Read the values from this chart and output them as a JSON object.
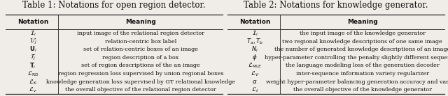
{
  "table1_title": "Table 1: Notations for open region detector.",
  "table1_headers": [
    "Notation",
    "Meaning"
  ],
  "table1_notations": [
    "$\\mathcal{I}_i$",
    "$\\mathcal{U}_j$",
    "$\\mathbf{U}_i$",
    "$\\mathcal{T}_j$",
    "$\\mathbf{T}_i$",
    "$\\mathcal{L}_{\\mathrm{RD}}$",
    "$\\mathcal{L}_{\\mathrm{K}}$",
    "$\\mathcal{L}_{v}$"
  ],
  "table1_meanings": [
    "input image of the relational region detector",
    "relation-centric box label",
    "set of relation-centric boxes of an image",
    "region description of a box",
    "set of region descriptions of the an image",
    "region regression loss supervised by union regional boxes",
    "knowledge generation loss supervised by GT relational knowledge",
    "the overall objective of the relational region detector"
  ],
  "table2_title": "Table 2: Notations for knowledge generator.",
  "table2_headers": [
    "Notation",
    "Meaning"
  ],
  "table2_notations": [
    "$\\mathcal{I}_i$",
    "$T_a, T_b$",
    "$N_i$",
    "$\\phi$",
    "$\\mathcal{L}_{\\mathrm{MLE}}$",
    "$\\mathcal{L}_{V}$",
    "$\\alpha$",
    "$\\mathcal{L}_{t}$"
  ],
  "table2_meanings": [
    "the input image of the knowledge generator",
    "two regional knowledge descriptions of one same image",
    "the number of generated knowledge descriptions of an image",
    "hyper-parameter controlling the penalty slightly different sequences",
    "the language modeling loss of the generation decoder",
    "inter-sequence information variety regularizer",
    "weight hyper-parameter balancing generation accuracy and variety",
    "the overall objective of the knowledge generator"
  ],
  "bg_color": "#f0ede8",
  "line_color": "#222222",
  "text_color": "#111111",
  "title_fontsize": 8.5,
  "header_fontsize": 6.5,
  "notation_fontsize": 6.2,
  "meaning_fontsize": 5.8
}
